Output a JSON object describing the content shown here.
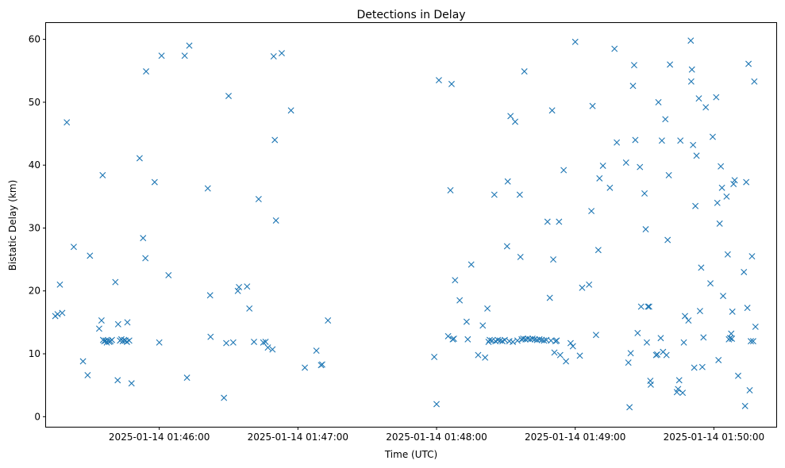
{
  "chart_data": {
    "type": "scatter",
    "title": "Detections in Delay",
    "xlabel": "Time (UTC)",
    "ylabel": "Bistatic Delay (km)",
    "x_unit": "seconds since 2025-01-14 01:45:00",
    "xlim": [
      11,
      327
    ],
    "ylim": [
      -1.6,
      62.6
    ],
    "grid": false,
    "marker": "x",
    "color": "#1f77b4",
    "x_ticks": [
      {
        "value": 60,
        "label": "2025-01-14 01:46:00"
      },
      {
        "value": 120,
        "label": "2025-01-14 01:47:00"
      },
      {
        "value": 180,
        "label": "2025-01-14 01:48:00"
      },
      {
        "value": 240,
        "label": "2025-01-14 01:49:00"
      },
      {
        "value": 300,
        "label": "2025-01-14 01:50:00"
      }
    ],
    "y_ticks": [
      {
        "value": 0,
        "label": "0"
      },
      {
        "value": 10,
        "label": "10"
      },
      {
        "value": 20,
        "label": "20"
      },
      {
        "value": 30,
        "label": "30"
      },
      {
        "value": 40,
        "label": "40"
      },
      {
        "value": 50,
        "label": "50"
      },
      {
        "value": 60,
        "label": "60"
      }
    ],
    "points": [
      [
        15,
        16.0
      ],
      [
        16,
        16.3
      ],
      [
        17,
        21.0
      ],
      [
        18,
        16.5
      ],
      [
        20,
        46.8
      ],
      [
        23,
        27.0
      ],
      [
        27,
        8.8
      ],
      [
        29,
        6.6
      ],
      [
        30,
        25.6
      ],
      [
        34,
        14.0
      ],
      [
        35,
        15.3
      ],
      [
        35.5,
        38.4
      ],
      [
        35.7,
        12.2
      ],
      [
        36.2,
        12.0
      ],
      [
        36.8,
        12.1
      ],
      [
        37.3,
        11.8
      ],
      [
        37.8,
        12.1
      ],
      [
        38.4,
        11.9
      ],
      [
        38.9,
        12.0
      ],
      [
        39.5,
        12.2
      ],
      [
        41,
        21.4
      ],
      [
        42,
        5.8
      ],
      [
        42.2,
        14.7
      ],
      [
        43,
        12.1
      ],
      [
        43.6,
        12.3
      ],
      [
        44.2,
        12.0
      ],
      [
        44.8,
        12.2
      ],
      [
        45.4,
        12.1
      ],
      [
        46,
        11.9
      ],
      [
        46.2,
        15.0
      ],
      [
        47,
        12.1
      ],
      [
        48,
        5.3
      ],
      [
        51.5,
        41.1
      ],
      [
        53,
        28.4
      ],
      [
        54,
        25.2
      ],
      [
        54.3,
        54.9
      ],
      [
        58,
        37.3
      ],
      [
        60,
        11.8
      ],
      [
        61,
        57.4
      ],
      [
        64,
        22.5
      ],
      [
        71,
        57.4
      ],
      [
        72,
        6.2
      ],
      [
        73,
        59.0
      ],
      [
        81,
        36.3
      ],
      [
        82,
        19.3
      ],
      [
        82.2,
        12.7
      ],
      [
        88,
        3.0
      ],
      [
        89,
        11.7
      ],
      [
        90,
        51.0
      ],
      [
        92,
        11.8
      ],
      [
        94,
        20.0
      ],
      [
        94.5,
        20.6
      ],
      [
        98,
        20.7
      ],
      [
        99,
        17.2
      ],
      [
        101,
        11.9
      ],
      [
        103,
        34.6
      ],
      [
        105,
        11.8
      ],
      [
        106,
        11.9
      ],
      [
        107,
        11.0
      ],
      [
        109,
        10.7
      ],
      [
        109.5,
        57.3
      ],
      [
        110,
        44.0
      ],
      [
        110.5,
        31.2
      ],
      [
        113,
        57.8
      ],
      [
        117,
        48.7
      ],
      [
        123,
        7.8
      ],
      [
        128,
        10.5
      ],
      [
        130,
        8.2
      ],
      [
        130.5,
        8.3
      ],
      [
        133,
        15.3
      ],
      [
        179,
        9.5
      ],
      [
        180,
        2.0
      ],
      [
        181,
        53.5
      ],
      [
        185,
        12.8
      ],
      [
        186,
        36.0
      ],
      [
        186.5,
        52.9
      ],
      [
        187,
        12.3
      ],
      [
        187.5,
        12.4
      ],
      [
        188,
        21.7
      ],
      [
        190,
        18.5
      ],
      [
        193,
        15.1
      ],
      [
        193.5,
        12.3
      ],
      [
        195,
        24.2
      ],
      [
        198,
        9.8
      ],
      [
        200,
        14.5
      ],
      [
        201,
        9.4
      ],
      [
        202,
        17.2
      ],
      [
        202.5,
        11.9
      ],
      [
        203,
        12.2
      ],
      [
        204,
        12.1
      ],
      [
        205,
        35.3
      ],
      [
        205.5,
        12.0
      ],
      [
        206.5,
        12.2
      ],
      [
        207.5,
        12.1
      ],
      [
        208.5,
        12.0
      ],
      [
        209.5,
        12.2
      ],
      [
        210.5,
        27.1
      ],
      [
        210.8,
        37.4
      ],
      [
        211.5,
        12.0
      ],
      [
        212,
        47.8
      ],
      [
        213,
        11.9
      ],
      [
        214,
        46.9
      ],
      [
        215,
        12.1
      ],
      [
        216,
        35.3
      ],
      [
        216.3,
        25.4
      ],
      [
        216.8,
        12.3
      ],
      [
        217.5,
        12.4
      ],
      [
        218,
        54.9
      ],
      [
        218.5,
        12.3
      ],
      [
        219.5,
        12.4
      ],
      [
        220.5,
        12.3
      ],
      [
        221.5,
        12.4
      ],
      [
        222.5,
        12.3
      ],
      [
        223.5,
        12.2
      ],
      [
        224.5,
        12.3
      ],
      [
        225.5,
        12.2
      ],
      [
        226.5,
        12.1
      ],
      [
        227.5,
        12.2
      ],
      [
        228,
        31.0
      ],
      [
        229,
        18.9
      ],
      [
        229.5,
        12.1
      ],
      [
        230,
        48.7
      ],
      [
        230.5,
        25.0
      ],
      [
        231,
        10.2
      ],
      [
        231.5,
        12.0
      ],
      [
        232,
        12.1
      ],
      [
        233,
        31.0
      ],
      [
        233.5,
        9.8
      ],
      [
        235,
        39.2
      ],
      [
        236,
        8.8
      ],
      [
        238,
        11.7
      ],
      [
        239,
        11.2
      ],
      [
        240,
        59.6
      ],
      [
        242,
        9.7
      ],
      [
        243,
        20.5
      ],
      [
        246,
        21.0
      ],
      [
        247,
        32.7
      ],
      [
        247.5,
        49.4
      ],
      [
        249,
        13.0
      ],
      [
        250,
        26.5
      ],
      [
        250.5,
        37.9
      ],
      [
        252,
        39.9
      ],
      [
        255,
        36.4
      ],
      [
        257,
        58.5
      ],
      [
        258,
        43.6
      ],
      [
        262,
        40.4
      ],
      [
        263,
        8.6
      ],
      [
        263.5,
        1.5
      ],
      [
        264,
        10.1
      ],
      [
        265,
        52.6
      ],
      [
        265.5,
        55.9
      ],
      [
        266,
        44.0
      ],
      [
        267,
        13.3
      ],
      [
        268,
        39.7
      ],
      [
        268.5,
        17.5
      ],
      [
        270,
        35.5
      ],
      [
        270.5,
        29.8
      ],
      [
        271,
        11.8
      ],
      [
        271.5,
        17.5
      ],
      [
        272,
        17.5
      ],
      [
        272.5,
        5.7
      ],
      [
        272.7,
        5.1
      ],
      [
        275,
        9.8
      ],
      [
        275.5,
        9.9
      ],
      [
        276,
        50.0
      ],
      [
        277,
        12.5
      ],
      [
        277.5,
        43.9
      ],
      [
        278,
        10.3
      ],
      [
        279,
        47.3
      ],
      [
        279.5,
        9.8
      ],
      [
        280,
        28.1
      ],
      [
        280.5,
        38.4
      ],
      [
        281,
        56.0
      ],
      [
        284,
        3.9
      ],
      [
        284.5,
        4.4
      ],
      [
        285,
        5.8
      ],
      [
        285.5,
        43.9
      ],
      [
        286.5,
        3.8
      ],
      [
        287,
        11.8
      ],
      [
        287.5,
        16.0
      ],
      [
        289,
        15.3
      ],
      [
        290,
        59.8
      ],
      [
        290.2,
        53.3
      ],
      [
        290.5,
        55.2
      ],
      [
        291,
        43.2
      ],
      [
        291.5,
        7.8
      ],
      [
        292,
        33.5
      ],
      [
        292.5,
        41.5
      ],
      [
        293.5,
        50.6
      ],
      [
        294,
        16.8
      ],
      [
        294.5,
        23.7
      ],
      [
        295,
        7.9
      ],
      [
        295.5,
        12.6
      ],
      [
        296.5,
        49.2
      ],
      [
        298.5,
        21.2
      ],
      [
        299.5,
        44.5
      ],
      [
        301,
        50.8
      ],
      [
        301.5,
        34.0
      ],
      [
        302,
        9.0
      ],
      [
        302.5,
        30.7
      ],
      [
        303,
        39.8
      ],
      [
        303.5,
        36.4
      ],
      [
        304,
        19.2
      ],
      [
        305.5,
        35.0
      ],
      [
        306,
        25.8
      ],
      [
        306.5,
        12.3
      ],
      [
        307,
        12.5
      ],
      [
        307.5,
        13.2
      ],
      [
        307.8,
        12.4
      ],
      [
        308,
        16.7
      ],
      [
        308.5,
        37.0
      ],
      [
        309,
        37.6
      ],
      [
        310.5,
        6.5
      ],
      [
        313,
        23.0
      ],
      [
        313.5,
        1.7
      ],
      [
        314,
        37.3
      ],
      [
        314.5,
        17.3
      ],
      [
        315,
        56.1
      ],
      [
        315.5,
        4.2
      ],
      [
        316,
        12.0
      ],
      [
        316.5,
        25.5
      ],
      [
        317,
        12.0
      ],
      [
        317.5,
        53.3
      ],
      [
        318,
        14.3
      ]
    ]
  }
}
